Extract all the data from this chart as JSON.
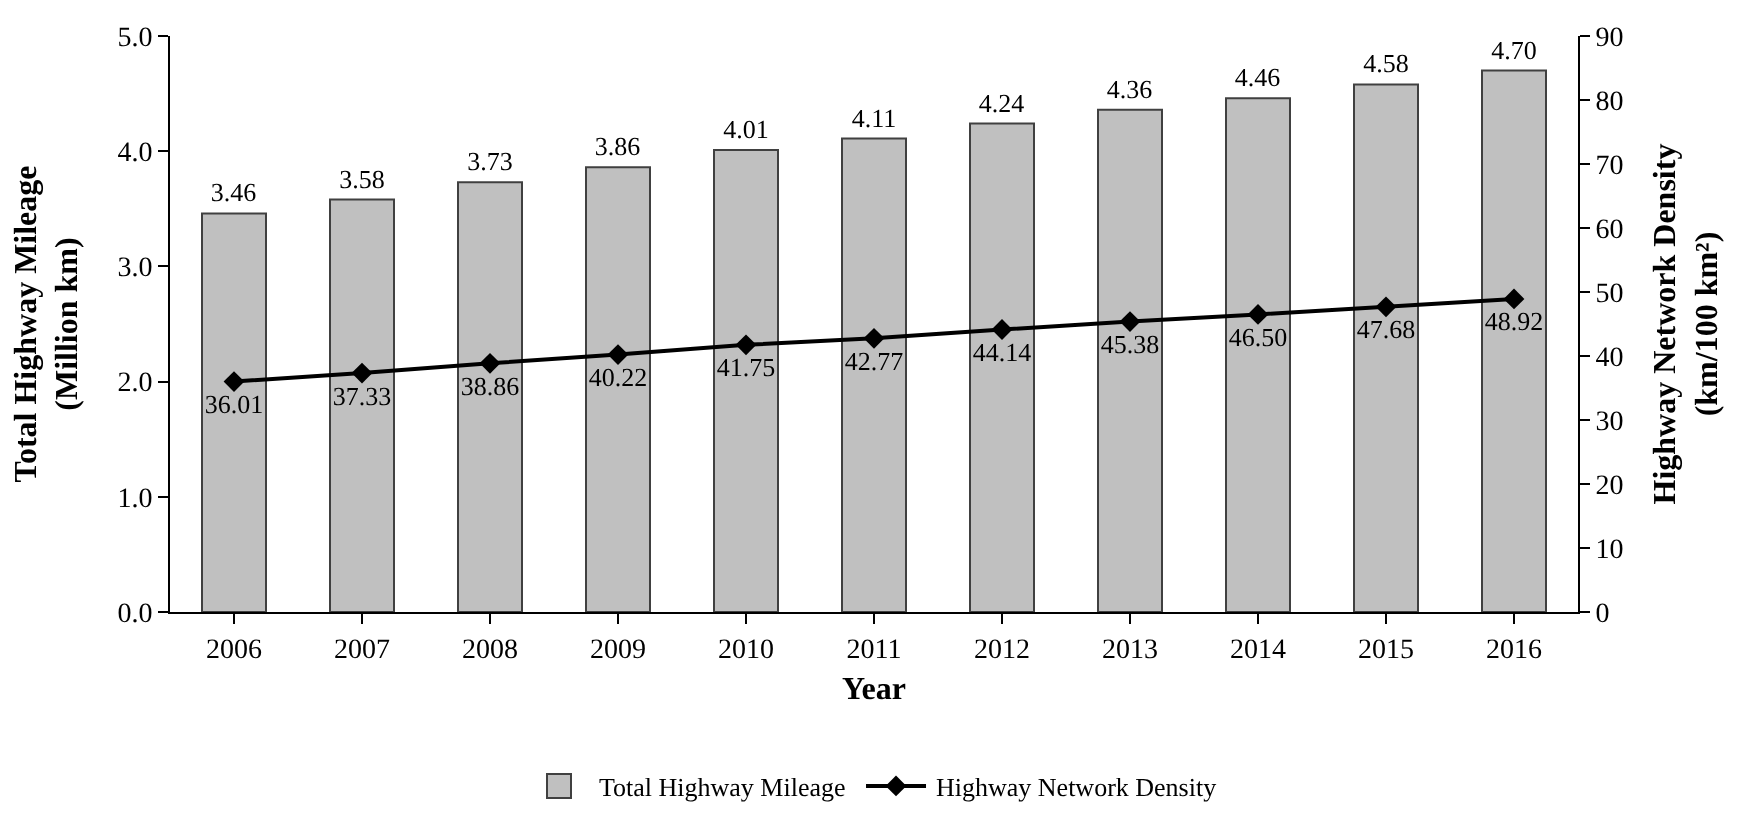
{
  "chart_data": {
    "type": "bar",
    "xlabel": "Year",
    "ylabel": "Total Highway Mileage\n(Million km)",
    "y2label": "Highway Network Density\n(km/100 km²)",
    "categories": [
      "2006",
      "2007",
      "2008",
      "2009",
      "2010",
      "2011",
      "2012",
      "2013",
      "2014",
      "2015",
      "2016"
    ],
    "series": [
      {
        "name": "Total Highway Mileage",
        "color": "#c0c0c0",
        "values": [
          3.46,
          3.58,
          3.73,
          3.86,
          4.01,
          4.11,
          4.24,
          4.36,
          4.46,
          4.58,
          4.7
        ],
        "value_labels": [
          "3.46",
          "3.58",
          "3.73",
          "3.86",
          "4.01",
          "4.11",
          "4.24",
          "4.36",
          "4.46",
          "4.58",
          "4.70"
        ]
      },
      {
        "name": "Highway Network Density",
        "type": "line",
        "axis": "y2",
        "color": "#000000",
        "marker": "diamond",
        "values": [
          36.01,
          37.33,
          38.86,
          40.22,
          41.75,
          42.77,
          44.14,
          45.38,
          46.5,
          47.68,
          48.92
        ],
        "value_labels": [
          "36.01",
          "37.33",
          "38.86",
          "40.22",
          "41.75",
          "42.77",
          "44.14",
          "45.38",
          "46.50",
          "47.68",
          "48.92"
        ]
      }
    ],
    "ylim": [
      0,
      5
    ],
    "yticks": [
      {
        "value": 0,
        "label": "0.0"
      },
      {
        "value": 1,
        "label": "1.0"
      },
      {
        "value": 2,
        "label": "2.0"
      },
      {
        "value": 3,
        "label": "3.0"
      },
      {
        "value": 4,
        "label": "4.0"
      },
      {
        "value": 5,
        "label": "5.0"
      }
    ],
    "y2lim": [
      0,
      90
    ],
    "y2ticks": [
      0,
      10,
      20,
      30,
      40,
      50,
      60,
      70,
      80,
      90
    ],
    "grid": false,
    "legend": "bottom"
  }
}
